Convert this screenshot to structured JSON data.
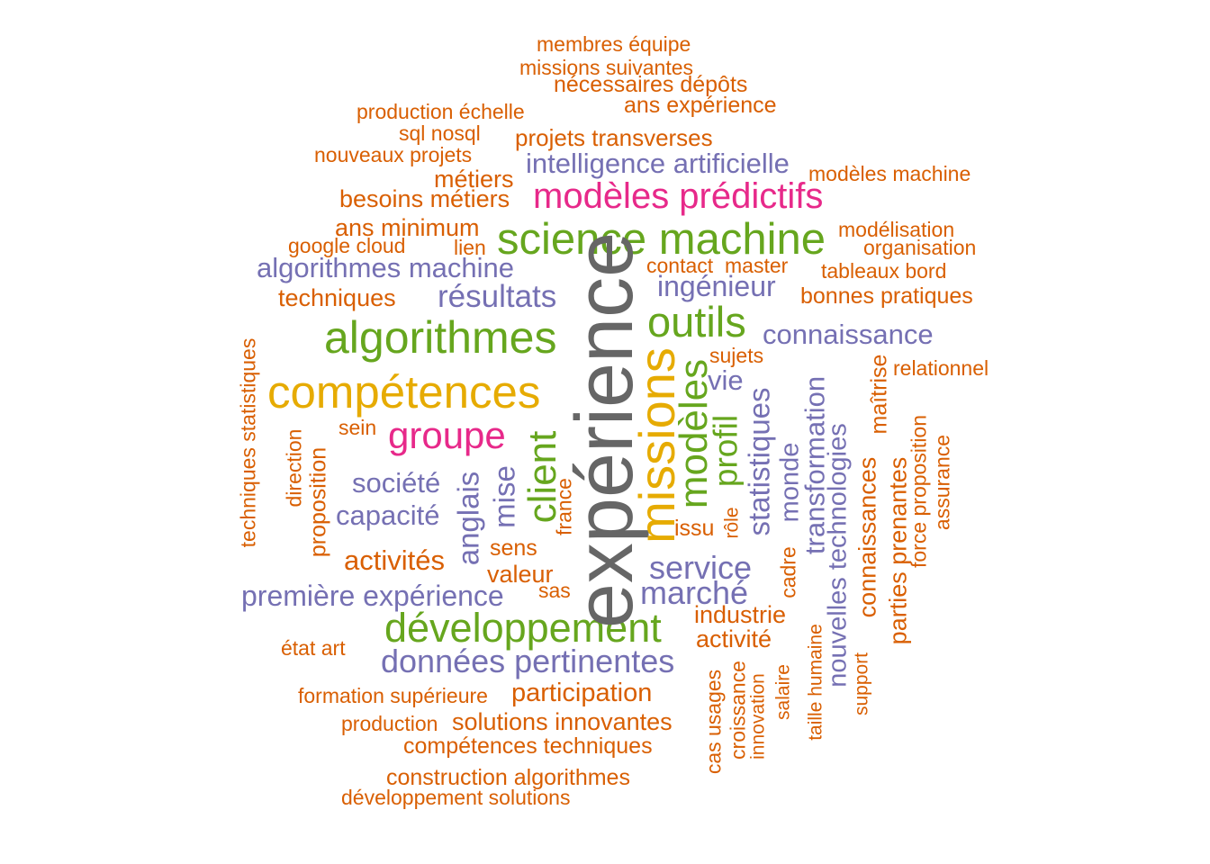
{
  "palette": {
    "orange": "#d95f02",
    "purple": "#7570b3",
    "pink": "#e7298a",
    "green": "#66a61e",
    "gold": "#e6ab02",
    "gray": "#666666"
  },
  "words": [
    {
      "text": "membres équipe",
      "color": "orange"
    },
    {
      "text": "missions suivantes",
      "color": "orange"
    },
    {
      "text": "nécessaires dépôts",
      "color": "orange"
    },
    {
      "text": "ans expérience",
      "color": "orange"
    },
    {
      "text": "production échelle",
      "color": "orange"
    },
    {
      "text": "sql nosql",
      "color": "orange"
    },
    {
      "text": "projets transverses",
      "color": "orange"
    },
    {
      "text": "nouveaux projets",
      "color": "orange"
    },
    {
      "text": "intelligence artificielle",
      "color": "purple"
    },
    {
      "text": "modèles machine",
      "color": "orange"
    },
    {
      "text": "métiers",
      "color": "orange"
    },
    {
      "text": "besoins métiers",
      "color": "orange"
    },
    {
      "text": "modèles prédictifs",
      "color": "pink"
    },
    {
      "text": "ans minimum",
      "color": "orange"
    },
    {
      "text": "science machine",
      "color": "green"
    },
    {
      "text": "modélisation",
      "color": "orange"
    },
    {
      "text": "google cloud",
      "color": "orange"
    },
    {
      "text": "lien",
      "color": "orange"
    },
    {
      "text": "organisation",
      "color": "orange"
    },
    {
      "text": "algorithmes machine",
      "color": "purple"
    },
    {
      "text": "contact",
      "color": "orange"
    },
    {
      "text": "master",
      "color": "orange"
    },
    {
      "text": "tableaux bord",
      "color": "orange"
    },
    {
      "text": "ingénieur",
      "color": "purple"
    },
    {
      "text": "techniques",
      "color": "orange"
    },
    {
      "text": "résultats",
      "color": "purple"
    },
    {
      "text": "bonnes pratiques",
      "color": "orange"
    },
    {
      "text": "outils",
      "color": "green"
    },
    {
      "text": "algorithmes",
      "color": "green"
    },
    {
      "text": "connaissance",
      "color": "purple"
    },
    {
      "text": "sujets",
      "color": "orange"
    },
    {
      "text": "relationnel",
      "color": "orange"
    },
    {
      "text": "vie",
      "color": "purple"
    },
    {
      "text": "compétences",
      "color": "gold"
    },
    {
      "text": "sein",
      "color": "orange"
    },
    {
      "text": "groupe",
      "color": "pink"
    },
    {
      "text": "société",
      "color": "purple"
    },
    {
      "text": "capacité",
      "color": "purple"
    },
    {
      "text": "sens",
      "color": "orange"
    },
    {
      "text": "issu",
      "color": "orange"
    },
    {
      "text": "activités",
      "color": "orange"
    },
    {
      "text": "valeur",
      "color": "orange"
    },
    {
      "text": "service",
      "color": "purple"
    },
    {
      "text": "sas",
      "color": "orange"
    },
    {
      "text": "marché",
      "color": "purple"
    },
    {
      "text": "première expérience",
      "color": "purple"
    },
    {
      "text": "industrie",
      "color": "orange"
    },
    {
      "text": "développement",
      "color": "green"
    },
    {
      "text": "activité",
      "color": "orange"
    },
    {
      "text": "état art",
      "color": "orange"
    },
    {
      "text": "données pertinentes",
      "color": "purple"
    },
    {
      "text": "formation supérieure",
      "color": "orange"
    },
    {
      "text": "participation",
      "color": "orange"
    },
    {
      "text": "production",
      "color": "orange"
    },
    {
      "text": "solutions innovantes",
      "color": "orange"
    },
    {
      "text": "compétences techniques",
      "color": "orange"
    },
    {
      "text": "construction algorithmes",
      "color": "orange"
    },
    {
      "text": "développement solutions",
      "color": "orange"
    },
    {
      "text": "techniques statistiques",
      "color": "orange"
    },
    {
      "text": "direction",
      "color": "orange"
    },
    {
      "text": "proposition",
      "color": "orange"
    },
    {
      "text": "anglais",
      "color": "purple"
    },
    {
      "text": "mise",
      "color": "purple"
    },
    {
      "text": "client",
      "color": "green"
    },
    {
      "text": "france",
      "color": "orange"
    },
    {
      "text": "expérience",
      "color": "gray"
    },
    {
      "text": "missions",
      "color": "gold"
    },
    {
      "text": "modèles",
      "color": "green"
    },
    {
      "text": "profil",
      "color": "green"
    },
    {
      "text": "rôle",
      "color": "orange"
    },
    {
      "text": "statistiques",
      "color": "purple"
    },
    {
      "text": "monde",
      "color": "purple"
    },
    {
      "text": "cadre",
      "color": "orange"
    },
    {
      "text": "transformation",
      "color": "purple"
    },
    {
      "text": "nouvelles technologies",
      "color": "purple"
    },
    {
      "text": "maîtrise",
      "color": "orange"
    },
    {
      "text": "connaissances",
      "color": "orange"
    },
    {
      "text": "parties prenantes",
      "color": "orange"
    },
    {
      "text": "force proposition",
      "color": "orange"
    },
    {
      "text": "assurance",
      "color": "orange"
    },
    {
      "text": "cas usages",
      "color": "orange"
    },
    {
      "text": "croissance",
      "color": "orange"
    },
    {
      "text": "innovation",
      "color": "orange"
    },
    {
      "text": "salaire",
      "color": "orange"
    },
    {
      "text": "taille humaine",
      "color": "orange"
    },
    {
      "text": "support",
      "color": "orange"
    }
  ]
}
